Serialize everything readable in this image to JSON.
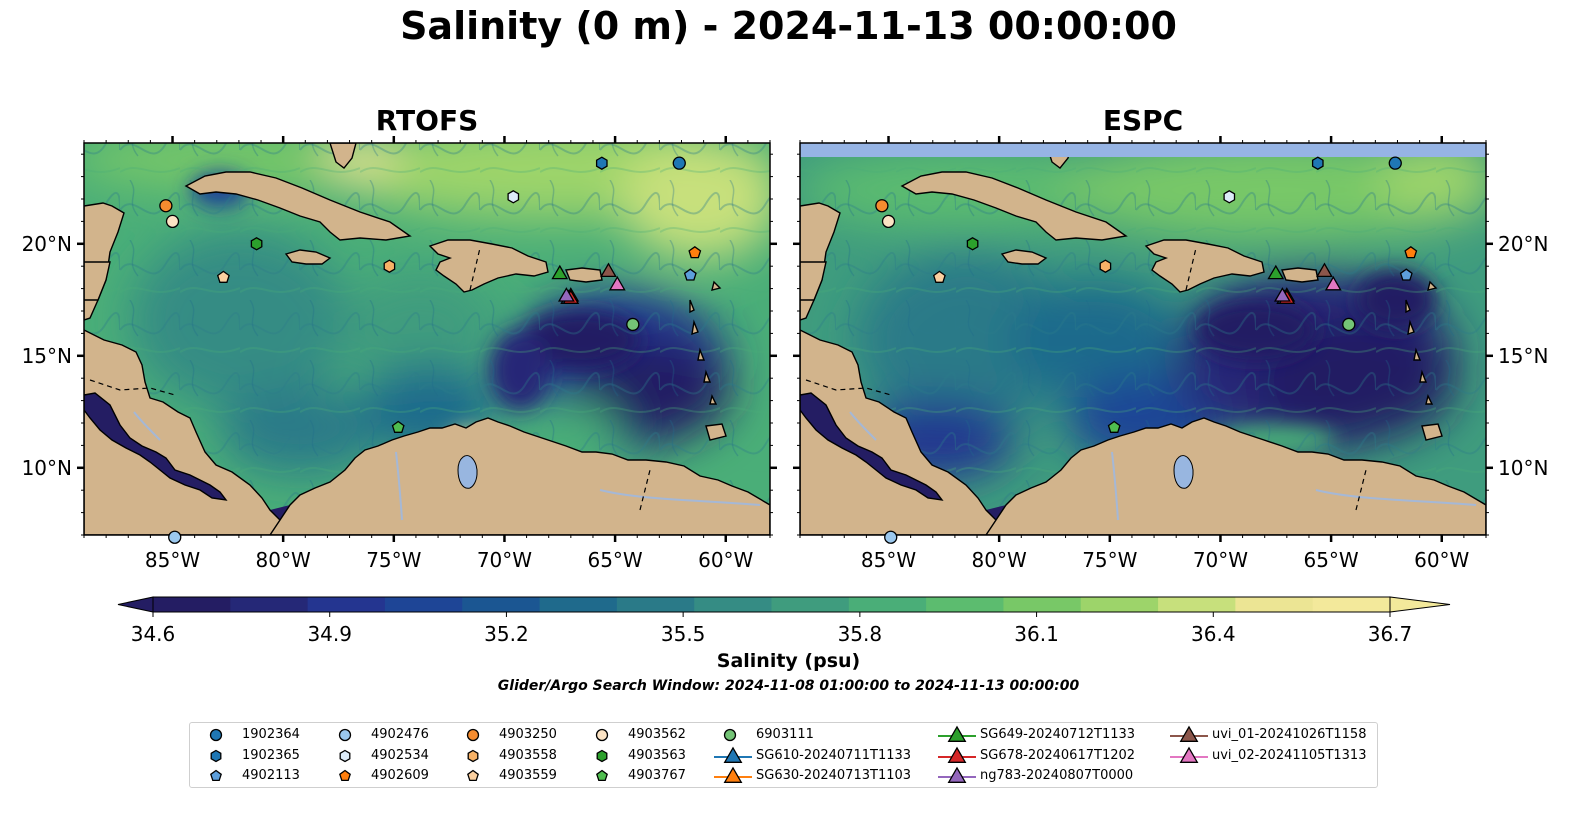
{
  "figure": {
    "title": "Salinity (0 m) - 2024-11-13 00:00:00",
    "search_window": "Glider/Argo Search Window: 2024-11-08 01:00:00 to 2024-11-13 00:00:00"
  },
  "colors": {
    "land": "#d2b48c",
    "lake": "#98b6e0",
    "rivers": "#a5b8d6",
    "espc_nodata": "#96b4e4",
    "colormap": [
      "#241d63",
      "#252877",
      "#243590",
      "#1e4596",
      "#1b5692",
      "#1f6a8c",
      "#2a7a88",
      "#358c84",
      "#3f9c7e",
      "#4aae78",
      "#5cbc6f",
      "#78c867",
      "#9dd46a",
      "#c7e07c",
      "#ece594",
      "#f3e99b"
    ]
  },
  "chart_data": [
    {
      "type": "heatmap",
      "panel": "RTOFS",
      "title": "RTOFS",
      "variable": "Salinity (psu)",
      "depth_m": 0,
      "lon_range": [
        -89,
        -58
      ],
      "lat_range": [
        7,
        24.5
      ],
      "x_ticks": [
        "85°W",
        "80°W",
        "75°W",
        "70°W",
        "65°W",
        "60°W"
      ],
      "x_tick_values": [
        -85,
        -80,
        -75,
        -70,
        -65,
        -60
      ],
      "y_ticks": [
        "10°N",
        "15°N",
        "20°N"
      ],
      "y_tick_values": [
        10,
        15,
        20
      ],
      "y_tick_side": "left",
      "field_description": "background ~36.0 psu; Gulf of Mexico and Atlantic 36.3-36.7; eastern Caribbean low 34.6-35.0; Pacific <34.6"
    },
    {
      "type": "heatmap",
      "panel": "ESPC",
      "title": "ESPC",
      "variable": "Salinity (psu)",
      "depth_m": 0,
      "lon_range": [
        -89,
        -58
      ],
      "lat_range": [
        7,
        24.5
      ],
      "x_ticks": [
        "85°W",
        "80°W",
        "75°W",
        "70°W",
        "65°W",
        "60°W"
      ],
      "x_tick_values": [
        -85,
        -80,
        -75,
        -70,
        -65,
        -60
      ],
      "y_ticks": [
        "10°N",
        "15°N",
        "20°N"
      ],
      "y_tick_values": [
        10,
        15,
        20
      ],
      "y_tick_side": "right",
      "nodata_band_lat": [
        23.9,
        24.5
      ],
      "field_description": "background ~35.8 psu; eastern Caribbean low 34.6; Pacific <34.6"
    },
    {
      "type": "colorbar",
      "label": "Salinity (psu)",
      "range": [
        34.6,
        36.7
      ],
      "extend": "both",
      "ticks": [
        "34.6",
        "34.9",
        "35.2",
        "35.5",
        "35.8",
        "36.1",
        "36.4",
        "36.7"
      ],
      "tick_values": [
        34.6,
        34.9,
        35.2,
        35.5,
        35.8,
        36.1,
        36.4,
        36.7
      ]
    }
  ],
  "observations": {
    "argo": [
      {
        "id": "1902364",
        "marker": "circle",
        "color": "#1f77b4",
        "lon": -62.1,
        "lat": 23.6
      },
      {
        "id": "1902365",
        "marker": "hexagon",
        "color": "#1f77b4",
        "lon": -65.6,
        "lat": 23.6
      },
      {
        "id": "4902113",
        "marker": "pentagon",
        "color": "#5d9fdc",
        "lon": -61.6,
        "lat": 18.6
      },
      {
        "id": "4902476",
        "marker": "circle",
        "color": "#9bc8ee",
        "lon": -84.9,
        "lat": 6.9
      },
      {
        "id": "4902534",
        "marker": "hexagon",
        "color": "#dcebf8",
        "lon": -69.6,
        "lat": 22.1
      },
      {
        "id": "4902609",
        "marker": "pentagon",
        "color": "#ff7f0e",
        "lon": -61.4,
        "lat": 19.6
      },
      {
        "id": "4903250",
        "marker": "circle",
        "color": "#f58c2f",
        "lon": -85.3,
        "lat": 21.7
      },
      {
        "id": "4903558",
        "marker": "hexagon",
        "color": "#f7b267",
        "lon": -75.2,
        "lat": 19.0
      },
      {
        "id": "4903559",
        "marker": "pentagon",
        "color": "#fbd0a0",
        "lon": -82.7,
        "lat": 18.5
      },
      {
        "id": "4903562",
        "marker": "circle",
        "color": "#fce3c4",
        "lon": -85.0,
        "lat": 21.0
      },
      {
        "id": "4903563",
        "marker": "hexagon",
        "color": "#2ca02c",
        "lon": -81.2,
        "lat": 20.0
      },
      {
        "id": "4903767",
        "marker": "pentagon",
        "color": "#4fbd4f",
        "lon": -74.8,
        "lat": 11.8
      },
      {
        "id": "6903111",
        "marker": "circle",
        "color": "#74c476",
        "lon": -64.2,
        "lat": 16.4
      }
    ],
    "gliders": [
      {
        "id": "SG610-20240711T1133",
        "marker": "triangle",
        "color": "#1f77b4",
        "lon": -67.1,
        "lat": 17.6
      },
      {
        "id": "SG630-20240713T1103",
        "marker": "triangle",
        "color": "#ff7f0e",
        "lon": -67.0,
        "lat": 17.7
      },
      {
        "id": "SG649-20240712T1133",
        "marker": "triangle",
        "color": "#2ca02c",
        "lon": -67.5,
        "lat": 18.7
      },
      {
        "id": "SG678-20240617T1202",
        "marker": "triangle",
        "color": "#d62728",
        "lon": -67.0,
        "lat": 17.6
      },
      {
        "id": "ng783-20240807T0000",
        "marker": "triangle",
        "color": "#9467bd",
        "lon": -67.2,
        "lat": 17.7
      },
      {
        "id": "uvi_01-20241026T1158",
        "marker": "triangle",
        "color": "#8c564b",
        "lon": -65.3,
        "lat": 18.8
      },
      {
        "id": "uvi_02-20241105T1313",
        "marker": "triangle",
        "color": "#e377c2",
        "lon": -64.9,
        "lat": 18.2
      }
    ]
  },
  "legend_columns": [
    [
      "1902364",
      "1902365",
      "4902113"
    ],
    [
      "4902476",
      "4902534",
      "4902609"
    ],
    [
      "4903250",
      "4903558",
      "4903559"
    ],
    [
      "4903562",
      "4903563",
      "4903767"
    ],
    [
      "6903111",
      "SG610-20240711T1133",
      "SG630-20240713T1103"
    ],
    [
      "SG649-20240712T1133",
      "SG678-20240617T1202",
      "ng783-20240807T0000"
    ],
    [
      "uvi_01-20241026T1158",
      "uvi_02-20241105T1313"
    ]
  ]
}
